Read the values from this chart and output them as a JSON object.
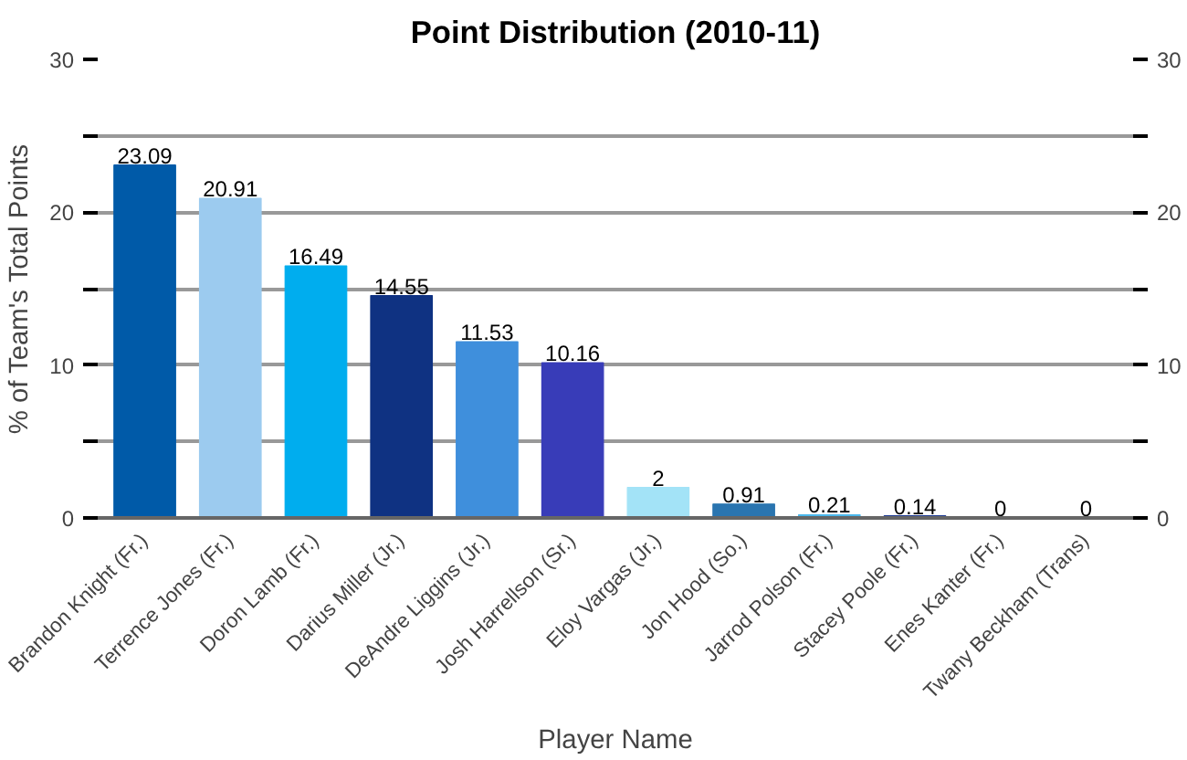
{
  "chart_data": {
    "type": "bar",
    "title": "Point Distribution (2010-11)",
    "xlabel": "Player Name",
    "ylabel": "% of Team's Total Points",
    "categories": [
      "Brandon Knight (Fr.)",
      "Terrence Jones (Fr.)",
      "Doron Lamb (Fr.)",
      "Darius Miller (Jr.)",
      "DeAndre Liggins (Jr.)",
      "Josh Harrellson (Sr.)",
      "Eloy Vargas (Jr.)",
      "Jon Hood (So.)",
      "Jarrod Polson (Fr.)",
      "Stacey Poole (Fr.)",
      "Enes Kanter (Fr.)",
      "Twany Beckham (Trans)"
    ],
    "values": [
      23.09,
      20.91,
      16.49,
      14.55,
      11.53,
      10.16,
      2,
      0.91,
      0.21,
      0.14,
      0,
      0
    ],
    "colors": [
      "#005aa8",
      "#9ccbef",
      "#00adee",
      "#0f3282",
      "#3f8fdc",
      "#383cb8",
      "#a3e3f7",
      "#2a75b0",
      "#4bb8ec",
      "#1f3c94",
      "#5aa0e0",
      "#2050a0"
    ],
    "ylim": [
      0,
      30
    ],
    "yticks": [
      0,
      {
        "value": 5,
        "label": null
      },
      10,
      {
        "value": 15,
        "label": null
      },
      20,
      {
        "value": 25,
        "label": null
      },
      30
    ],
    "y2lim": [
      0,
      30
    ],
    "y2ticks": [
      0,
      {
        "value": 5,
        "label": null
      },
      10,
      {
        "value": 15,
        "label": null
      },
      20,
      {
        "value": 25,
        "label": null
      },
      30
    ],
    "grid": "y",
    "data_labels": true
  }
}
